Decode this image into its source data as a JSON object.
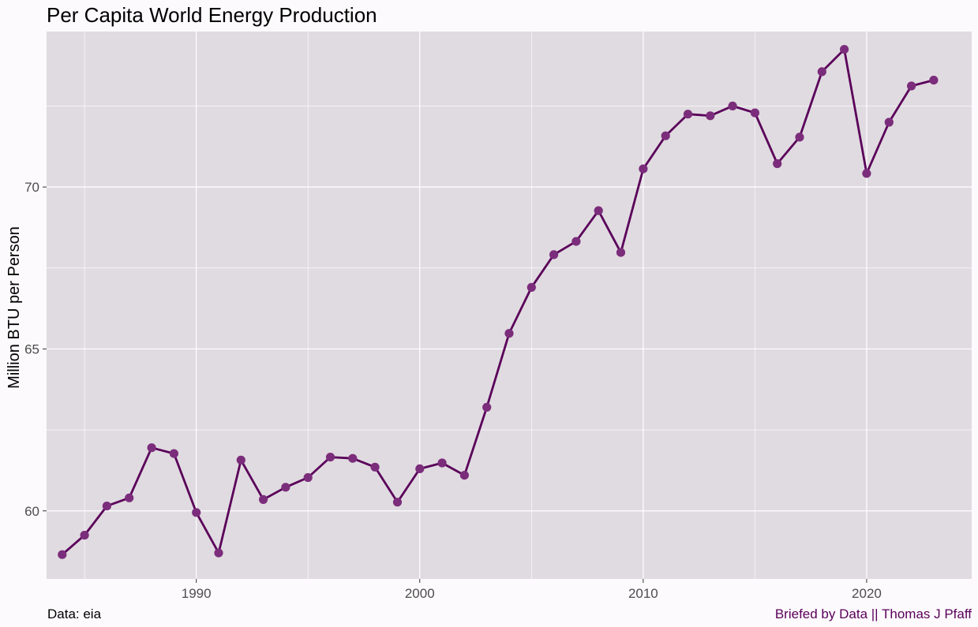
{
  "chart_data": {
    "type": "line",
    "title": "Per Capita World Energy Production",
    "xlabel": "",
    "ylabel": "Million BTU per Person",
    "caption_left": "Data: eia",
    "caption_right": "Briefed by Data || Thomas J Pfaff",
    "xlim": [
      1983.3,
      2024.7
    ],
    "ylim": [
      57.9,
      74.8
    ],
    "x_ticks": [
      1990,
      2000,
      2010,
      2020
    ],
    "y_ticks": [
      60,
      65,
      70
    ],
    "x_minor": [
      1985,
      1995,
      2005,
      2015
    ],
    "y_minor": [
      57.5,
      62.5,
      67.5,
      72.5
    ],
    "grid": true,
    "series": [
      {
        "x": [
          1984,
          1985,
          1986,
          1987,
          1988,
          1989,
          1990,
          1991,
          1992,
          1993,
          1994,
          1995,
          1996,
          1997,
          1998,
          1999,
          2000,
          2001,
          2002,
          2003,
          2004,
          2005,
          2006,
          2007,
          2008,
          2009,
          2010,
          2011,
          2012,
          2013,
          2014,
          2015,
          2016,
          2017,
          2018,
          2019,
          2020,
          2021,
          2022,
          2023
        ],
        "values": [
          58.65,
          59.25,
          60.15,
          60.4,
          61.95,
          61.77,
          59.95,
          58.7,
          61.57,
          60.35,
          60.73,
          61.03,
          61.66,
          61.62,
          61.35,
          60.27,
          61.3,
          61.48,
          61.1,
          63.2,
          65.48,
          66.9,
          67.91,
          68.32,
          69.27,
          67.98,
          70.56,
          71.58,
          72.25,
          72.2,
          72.5,
          72.29,
          70.72,
          71.54,
          73.56,
          74.25,
          70.42,
          72.0,
          73.12,
          73.3
        ]
      }
    ],
    "colors": {
      "line": "#5a005a",
      "point": "#7b2d7b",
      "panel": "#e0dbe0",
      "grid": "#ffffff",
      "background": "#fcfafc",
      "caption_right": "#5a005a"
    }
  }
}
